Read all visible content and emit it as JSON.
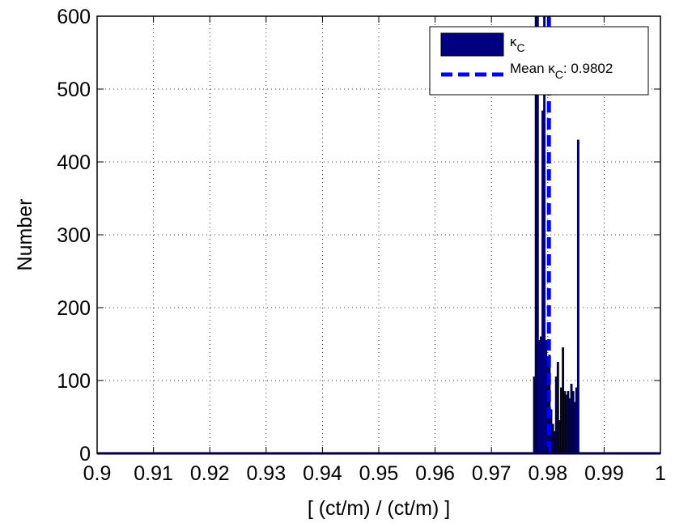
{
  "chart_data": {
    "type": "bar",
    "xlabel": "[ (ct/m) / (ct/m) ]",
    "ylabel": "Number",
    "xlim": [
      0.9,
      1.0
    ],
    "ylim": [
      0,
      600
    ],
    "xticks": [
      0.9,
      0.91,
      0.92,
      0.93,
      0.94,
      0.95,
      0.96,
      0.97,
      0.98,
      0.99,
      1.0
    ],
    "xtick_labels": [
      "0.9",
      "0.91",
      "0.92",
      "0.93",
      "0.94",
      "0.95",
      "0.96",
      "0.97",
      "0.98",
      "0.99",
      "1"
    ],
    "yticks": [
      0,
      100,
      200,
      300,
      400,
      500,
      600
    ],
    "ytick_labels": [
      "0",
      "100",
      "200",
      "300",
      "400",
      "500",
      "600"
    ],
    "grid": true,
    "legend_position": "top-right",
    "series": [
      {
        "name": "κ_C",
        "kind": "histogram",
        "color": "#000080",
        "edge_color": "#000000",
        "x": [
          0.9776,
          0.9779,
          0.9782,
          0.9785,
          0.9788,
          0.9791,
          0.9794,
          0.9797,
          0.98,
          0.9803,
          0.9806,
          0.9809,
          0.9812,
          0.9815,
          0.9818,
          0.9821,
          0.9824,
          0.9827,
          0.983,
          0.9833,
          0.9836,
          0.9839,
          0.9842,
          0.9845,
          0.9848,
          0.9851,
          0.9854,
          0.9857,
          0.986,
          0.9863,
          0.9866,
          0.9869
        ],
        "values": [
          105,
          600,
          600,
          155,
          160,
          470,
          600,
          155,
          125,
          135,
          60,
          40,
          30,
          105,
          125,
          45,
          90,
          145,
          85,
          80,
          85,
          75,
          95,
          85,
          70,
          90,
          430,
          0,
          0,
          0,
          0,
          0
        ]
      },
      {
        "name": "Mean κ_C: 0.9802",
        "kind": "vline",
        "x": 0.9802,
        "color": "#0000ff",
        "style": "dashed"
      }
    ],
    "legend": {
      "entries": [
        {
          "text_main": "κ",
          "text_sub": "C",
          "text_after": ""
        },
        {
          "text_main": "Mean κ",
          "text_sub": "C",
          "text_after": ": 0.9802"
        }
      ]
    }
  }
}
